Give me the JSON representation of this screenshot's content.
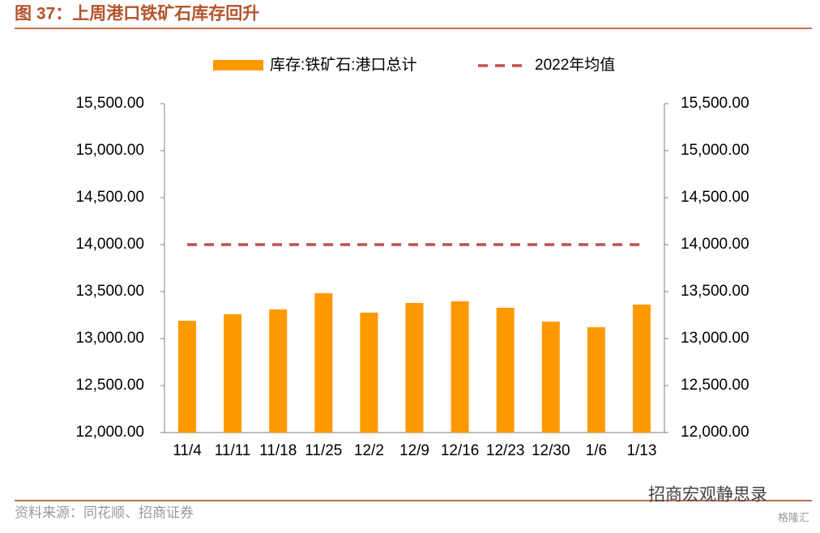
{
  "chart_data": {
    "type": "bar",
    "title": "图 37：上周港口铁矿石库存回升",
    "categories": [
      "11/4",
      "11/11",
      "11/18",
      "11/25",
      "12/2",
      "12/9",
      "12/16",
      "12/23",
      "12/30",
      "1/6",
      "1/13"
    ],
    "series": [
      {
        "name": "库存:铁矿石:港口总计",
        "type": "bar",
        "color": "#ff9900",
        "values": [
          13190,
          13259,
          13310,
          13483,
          13276,
          13379,
          13397,
          13328,
          13181,
          13121,
          13362
        ]
      },
      {
        "name": "2022年均值",
        "type": "line",
        "color": "#c0504d",
        "values": [
          14000,
          14000,
          14000,
          14000,
          14000,
          14000,
          14000,
          14000,
          14000,
          14000,
          14000
        ]
      }
    ],
    "ylim": [
      12000,
      15500
    ],
    "yticks": [
      {
        "value": 12000,
        "label": "12,000.00"
      },
      {
        "value": 12500,
        "label": "12,500.00"
      },
      {
        "value": 13000,
        "label": "13,000.00"
      },
      {
        "value": 13500,
        "label": "13,500.00"
      },
      {
        "value": 14000,
        "label": "14,000.00"
      },
      {
        "value": 14500,
        "label": "14,500.00"
      },
      {
        "value": 15000,
        "label": "15,000.00"
      },
      {
        "value": 15500,
        "label": "15,500.00"
      }
    ],
    "y2lim": [
      12000,
      15500
    ],
    "y2ticks": [
      {
        "value": 12000,
        "label": "12,000.00"
      },
      {
        "value": 12500,
        "label": "12,500.00"
      },
      {
        "value": 13000,
        "label": "13,000.00"
      },
      {
        "value": 13500,
        "label": "13,500.00"
      },
      {
        "value": 14000,
        "label": "14,000.00"
      },
      {
        "value": 14500,
        "label": "14,500.00"
      },
      {
        "value": 15000,
        "label": "15,000.00"
      },
      {
        "value": 15500,
        "label": "15,500.00"
      }
    ],
    "source": "资料来源：同花顺、招商证券",
    "watermark": "招商宏观静思录",
    "watermark2": "格隆汇"
  }
}
